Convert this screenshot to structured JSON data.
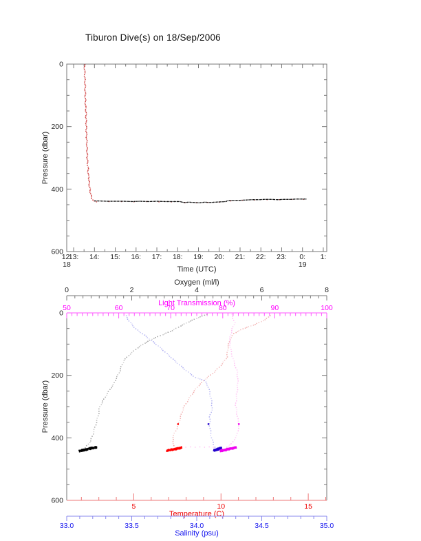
{
  "page": {
    "title": "Tiburon Dive(s) on 18/Sep/2006",
    "background": "#ffffff"
  },
  "chart_data": [
    {
      "type": "scatter",
      "id": "dive-pressure-vs-time",
      "title": "Tiburon Dive(s) on 18/Sep/2006",
      "xlabel": "Time (UTC)",
      "ylabel": "Pressure (dbar)",
      "x_is_time_utc": true,
      "xlim_hours": [
        12.667,
        25.167
      ],
      "ylim": [
        0,
        600
      ],
      "y_inverted": true,
      "frame_color": "#777777",
      "x_ticks": [
        {
          "v": 12.667,
          "label": "12:",
          "sub": "18"
        },
        {
          "v": 13,
          "label": "13:"
        },
        {
          "v": 14,
          "label": "14:"
        },
        {
          "v": 15,
          "label": "15:"
        },
        {
          "v": 16,
          "label": "16:"
        },
        {
          "v": 17,
          "label": "17:"
        },
        {
          "v": 18,
          "label": "18:"
        },
        {
          "v": 19,
          "label": "19:"
        },
        {
          "v": 20,
          "label": "20:"
        },
        {
          "v": 21,
          "label": "21:"
        },
        {
          "v": 22,
          "label": "22:"
        },
        {
          "v": 23,
          "label": "23:"
        },
        {
          "v": 24,
          "label": "0:",
          "sub": "19"
        },
        {
          "v": 25,
          "label": "1:"
        }
      ],
      "x_minor_step": 0.5,
      "y_ticks": [
        0,
        200,
        400,
        600
      ],
      "y_tick_labels": [
        "0",
        "200",
        "400",
        "600"
      ],
      "y_minor_step": 50,
      "series": [
        {
          "name": "descent-profile",
          "color": "#cc3333",
          "style": "dots",
          "points": [
            [
              13.52,
              2
            ],
            [
              13.53,
              28
            ],
            [
              13.54,
              55
            ],
            [
              13.55,
              65
            ],
            [
              13.56,
              100
            ],
            [
              13.57,
              135
            ],
            [
              13.59,
              145
            ],
            [
              13.6,
              180
            ],
            [
              13.61,
              215
            ],
            [
              13.63,
              250
            ],
            [
              13.64,
              262
            ],
            [
              13.65,
              295
            ],
            [
              13.67,
              318
            ],
            [
              13.69,
              330
            ],
            [
              13.7,
              355
            ],
            [
              13.73,
              362
            ],
            [
              13.75,
              385
            ],
            [
              13.79,
              405
            ],
            [
              13.83,
              420
            ],
            [
              13.88,
              430
            ],
            [
              13.94,
              435
            ],
            [
              13.99,
              438
            ]
          ]
        },
        {
          "name": "bottom-track-red",
          "color": "#cc4444",
          "style": "sparse-dots",
          "points": [
            [
              14.1,
              441
            ],
            [
              14.7,
              440
            ],
            [
              15.3,
              440
            ],
            [
              15.9,
              441
            ],
            [
              16.5,
              440
            ],
            [
              17.1,
              441
            ],
            [
              17.7,
              441
            ],
            [
              18.35,
              444
            ],
            [
              18.9,
              444
            ],
            [
              19.45,
              443
            ],
            [
              20.0,
              442
            ],
            [
              20.55,
              438
            ],
            [
              21.1,
              436
            ],
            [
              21.7,
              435
            ],
            [
              22.3,
              434
            ],
            [
              22.9,
              434
            ],
            [
              23.5,
              433
            ],
            [
              24.05,
              433
            ]
          ]
        },
        {
          "name": "bottom-track",
          "color": "#111111",
          "style": "dense-dots",
          "points": [
            [
              13.99,
              438
            ],
            [
              14.2,
              438
            ],
            [
              14.6,
              439
            ],
            [
              15.0,
              439
            ],
            [
              15.4,
              439
            ],
            [
              15.8,
              440
            ],
            [
              16.2,
              439
            ],
            [
              16.6,
              440
            ],
            [
              17.0,
              439
            ],
            [
              17.4,
              440
            ],
            [
              17.8,
              440
            ],
            [
              18.1,
              440
            ],
            [
              18.3,
              443
            ],
            [
              18.55,
              442
            ],
            [
              18.8,
              443
            ],
            [
              19.05,
              444
            ],
            [
              19.3,
              442
            ],
            [
              19.55,
              443
            ],
            [
              19.8,
              442
            ],
            [
              20.05,
              441
            ],
            [
              20.3,
              440
            ],
            [
              20.45,
              437
            ],
            [
              20.7,
              436
            ],
            [
              21.0,
              436
            ],
            [
              21.3,
              435
            ],
            [
              21.6,
              434
            ],
            [
              21.9,
              434
            ],
            [
              22.2,
              433
            ],
            [
              22.5,
              433
            ],
            [
              22.8,
              434
            ],
            [
              23.1,
              433
            ],
            [
              23.4,
              433
            ],
            [
              23.7,
              432
            ],
            [
              24.0,
              432
            ],
            [
              24.17,
              432
            ]
          ]
        }
      ]
    },
    {
      "type": "scatter",
      "id": "sensor-profiles-vs-pressure",
      "ylabel": "Pressure (dbar)",
      "ylim": [
        0,
        600
      ],
      "y_inverted": true,
      "frame_color": "#777777",
      "pressure_ticks": [
        0,
        200,
        400,
        600
      ],
      "pressure_tick_labels": [
        "0",
        "200",
        "400",
        "600"
      ],
      "pressure_minor_step": 50,
      "axes": {
        "oxygen": {
          "label": "Oxygen (ml/l)",
          "color": "#222222",
          "line_color": "#777777",
          "lim": [
            0,
            8
          ],
          "ticks": [
            0,
            2,
            4,
            6,
            8
          ],
          "tick_labels": [
            "0",
            "2",
            "4",
            "6",
            "8"
          ],
          "minor_step": 0.25
        },
        "light_transmission": {
          "label": "Light Transmission (%)",
          "color": "#ff00ff",
          "line_color": "#ff55ff",
          "lim": [
            50,
            100
          ],
          "ticks": [
            50,
            60,
            70,
            80,
            90,
            100
          ],
          "tick_labels": [
            "50",
            "60",
            "70",
            "80",
            "90",
            "100"
          ],
          "minor_step": 1
        },
        "temperature": {
          "label": "Temperature (C)",
          "color": "#ee0000",
          "line_color": "#ee7777",
          "lim": [
            1.16,
            16.06
          ],
          "ticks": [
            5,
            10,
            15
          ],
          "tick_labels": [
            "5",
            "10",
            "15"
          ],
          "minor_step": 1
        },
        "salinity": {
          "label": "Salinity (psu)",
          "color": "#1111ee",
          "line_color": "#8888ee",
          "lim": [
            33.0,
            35.0
          ],
          "ticks": [
            33.0,
            33.5,
            34.0,
            34.5,
            35.0
          ],
          "tick_labels": [
            "33.0",
            "33.5",
            "34.0",
            "34.5",
            "35.0"
          ],
          "minor_step": 0.1
        }
      },
      "series": [
        {
          "name": "oxygen-profile",
          "axis": "oxygen",
          "color": "#888888",
          "blob_color": "#000000",
          "points": [
            [
              4.3,
              5
            ],
            [
              4.05,
              15
            ],
            [
              3.81,
              26
            ],
            [
              3.5,
              42
            ],
            [
              3.24,
              57
            ],
            [
              2.95,
              70
            ],
            [
              2.67,
              82
            ],
            [
              2.4,
              97
            ],
            [
              2.18,
              112
            ],
            [
              1.95,
              132
            ],
            [
              1.76,
              152
            ],
            [
              1.68,
              172
            ],
            [
              1.61,
              192
            ],
            [
              1.52,
              210
            ],
            [
              1.44,
              229
            ],
            [
              1.33,
              245
            ],
            [
              1.18,
              270
            ],
            [
              1.02,
              300
            ],
            [
              0.95,
              337
            ],
            [
              0.85,
              373
            ],
            [
              0.74,
              410
            ],
            [
              0.62,
              425
            ],
            [
              0.57,
              432
            ]
          ],
          "bottom_cluster": {
            "v0": 0.38,
            "v1": 0.92,
            "p_at_v0": 442,
            "p_at_v1": 430,
            "spread": 5,
            "n": 130
          }
        },
        {
          "name": "salinity-profile",
          "axis": "salinity",
          "color": "#9999ee",
          "blob_color": "#2200cc",
          "points": [
            [
              33.455,
              9
            ],
            [
              33.48,
              26
            ],
            [
              33.53,
              51
            ],
            [
              33.61,
              75
            ],
            [
              33.69,
              101
            ],
            [
              33.77,
              130
            ],
            [
              33.84,
              157
            ],
            [
              33.92,
              185
            ],
            [
              33.99,
              207
            ],
            [
              34.06,
              216
            ],
            [
              34.09,
              238
            ],
            [
              34.11,
              274
            ],
            [
              34.12,
              304
            ],
            [
              34.1,
              333
            ],
            [
              34.1,
              362
            ],
            [
              34.11,
              393
            ],
            [
              34.13,
              421
            ],
            [
              34.14,
              430
            ]
          ],
          "highlight_point": [
            34.09,
            356
          ],
          "bottom_cluster": {
            "v0": 34.13,
            "v1": 34.19,
            "p_at_v0": 441,
            "p_at_v1": 432,
            "spread": 5,
            "n": 90
          }
        },
        {
          "name": "temperature-profile",
          "axis": "temperature",
          "color": "#ee9999",
          "blob_color": "#ff0000",
          "points": [
            [
              12.81,
              9
            ],
            [
              12.54,
              22
            ],
            [
              11.95,
              37
            ],
            [
              11.25,
              51
            ],
            [
              10.74,
              66
            ],
            [
              10.51,
              86
            ],
            [
              10.39,
              112
            ],
            [
              10.35,
              141
            ],
            [
              10.08,
              163
            ],
            [
              9.61,
              190
            ],
            [
              9.1,
              212
            ],
            [
              8.63,
              238
            ],
            [
              8.2,
              271
            ],
            [
              7.85,
              304
            ],
            [
              7.66,
              338
            ],
            [
              7.46,
              371
            ],
            [
              7.23,
              399
            ],
            [
              7.3,
              425
            ]
          ],
          "highlight_point": [
            7.54,
            356
          ],
          "bottom_cluster": {
            "v0": 6.88,
            "v1": 7.75,
            "p_at_v0": 442,
            "p_at_v1": 431,
            "spread": 5,
            "n": 110
          }
        },
        {
          "name": "light-transmission-profile",
          "axis": "light_transmission",
          "color": "#ffaaee",
          "blob_color": "#ee00ee",
          "points": [
            [
              81.7,
              4
            ],
            [
              82.3,
              31
            ],
            [
              81.7,
              57
            ],
            [
              81.3,
              90
            ],
            [
              81.6,
              124
            ],
            [
              82.1,
              154
            ],
            [
              82.8,
              190
            ],
            [
              82.9,
              225
            ],
            [
              82.7,
              260
            ],
            [
              82.5,
              296
            ],
            [
              82.8,
              331
            ],
            [
              83.1,
              362
            ],
            [
              82.7,
              393
            ],
            [
              81.7,
              419
            ],
            [
              80.8,
              430
            ]
          ],
          "highlight_point": [
            83.1,
            356
          ],
          "transit_points": [
            [
              72.9,
              430
            ],
            [
              73.8,
              429
            ],
            [
              74.7,
              430
            ],
            [
              75.6,
              429
            ],
            [
              76.5,
              430
            ],
            [
              77.4,
              429
            ],
            [
              78.2,
              430
            ]
          ],
          "bottom_cluster": {
            "v0": 79.5,
            "v1": 82.6,
            "p_at_v0": 442,
            "p_at_v1": 431,
            "spread": 5,
            "n": 140
          }
        }
      ]
    }
  ]
}
